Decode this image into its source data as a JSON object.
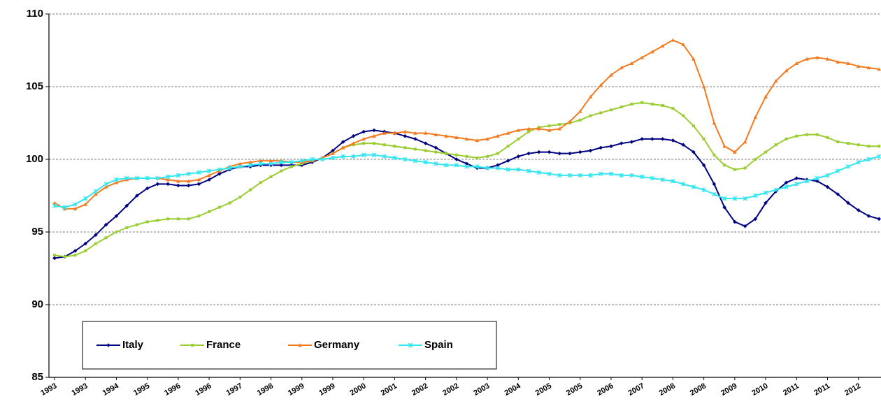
{
  "chart_data": {
    "type": "line",
    "categories": [
      "1993",
      null,
      null,
      "1993",
      null,
      null,
      "1994",
      null,
      null,
      "1995",
      null,
      null,
      "1996",
      null,
      null,
      "1996",
      null,
      null,
      "1997",
      null,
      null,
      "1998",
      null,
      null,
      "1999",
      null,
      null,
      "1999",
      null,
      null,
      "2000",
      null,
      null,
      "2001",
      null,
      null,
      "2002",
      null,
      null,
      "2002",
      null,
      null,
      "2003",
      null,
      null,
      "2004",
      null,
      null,
      "2005",
      null,
      null,
      "2005",
      null,
      null,
      "2006",
      null,
      null,
      "2007",
      null,
      null,
      "2008",
      null,
      null,
      "2008",
      null,
      null,
      "2009",
      null,
      null,
      "2010",
      null,
      null,
      "2011",
      null,
      null,
      "2011",
      null,
      null,
      "2012",
      null,
      null
    ],
    "series": [
      {
        "name": "Italy",
        "color": "#000080",
        "marker": "diamond",
        "values": [
          93.2,
          93.3,
          93.7,
          94.2,
          94.8,
          95.5,
          96.1,
          96.8,
          97.5,
          98.0,
          98.3,
          98.3,
          98.2,
          98.2,
          98.3,
          98.6,
          99.0,
          99.3,
          99.5,
          99.5,
          99.6,
          99.6,
          99.6,
          99.6,
          99.6,
          99.8,
          100.1,
          100.6,
          101.2,
          101.6,
          101.9,
          102.0,
          101.9,
          101.8,
          101.6,
          101.4,
          101.1,
          100.8,
          100.4,
          100.0,
          99.7,
          99.4,
          99.4,
          99.6,
          99.9,
          100.2,
          100.4,
          100.5,
          100.5,
          100.4,
          100.4,
          100.5,
          100.6,
          100.8,
          100.9,
          101.1,
          101.2,
          101.4,
          101.4,
          101.4,
          101.3,
          101.0,
          100.5,
          99.6,
          98.3,
          96.7,
          95.7,
          95.4,
          95.9,
          97.0,
          97.8,
          98.4,
          98.7,
          98.6,
          98.5,
          98.1,
          97.6,
          97.0,
          96.5,
          96.1,
          95.9
        ]
      },
      {
        "name": "France",
        "color": "#9acd32",
        "marker": "square",
        "values": [
          93.4,
          93.3,
          93.4,
          93.7,
          94.2,
          94.6,
          95.0,
          95.3,
          95.5,
          95.7,
          95.8,
          95.9,
          95.9,
          95.9,
          96.1,
          96.4,
          96.7,
          97.0,
          97.4,
          97.9,
          98.4,
          98.8,
          99.2,
          99.5,
          99.7,
          99.9,
          100.1,
          100.4,
          100.8,
          101.0,
          101.1,
          101.1,
          101.0,
          100.9,
          100.8,
          100.7,
          100.6,
          100.5,
          100.4,
          100.3,
          100.2,
          100.1,
          100.2,
          100.4,
          100.9,
          101.4,
          101.9,
          102.2,
          102.3,
          102.4,
          102.5,
          102.7,
          103.0,
          103.2,
          103.4,
          103.6,
          103.8,
          103.9,
          103.8,
          103.7,
          103.5,
          103.0,
          102.3,
          101.4,
          100.3,
          99.6,
          99.3,
          99.4,
          100.0,
          100.5,
          101.0,
          101.4,
          101.6,
          101.7,
          101.7,
          101.5,
          101.2,
          101.1,
          101.0,
          100.9,
          100.9
        ]
      },
      {
        "name": "Germany",
        "color": "#f47a20",
        "marker": "triangle",
        "values": [
          97.0,
          96.6,
          96.6,
          96.9,
          97.6,
          98.1,
          98.4,
          98.6,
          98.7,
          98.7,
          98.7,
          98.6,
          98.5,
          98.5,
          98.6,
          98.9,
          99.2,
          99.5,
          99.7,
          99.8,
          99.9,
          99.9,
          99.9,
          99.8,
          99.8,
          99.9,
          100.1,
          100.4,
          100.8,
          101.1,
          101.4,
          101.6,
          101.8,
          101.8,
          101.9,
          101.8,
          101.8,
          101.7,
          101.6,
          101.5,
          101.4,
          101.3,
          101.4,
          101.6,
          101.8,
          102.0,
          102.1,
          102.1,
          102.0,
          102.1,
          102.6,
          103.3,
          104.3,
          105.1,
          105.8,
          106.3,
          106.6,
          107.0,
          107.4,
          107.8,
          108.2,
          107.9,
          106.9,
          105.0,
          102.5,
          100.9,
          100.5,
          101.2,
          102.9,
          104.3,
          105.4,
          106.1,
          106.6,
          106.9,
          107.0,
          106.9,
          106.7,
          106.6,
          106.4,
          106.3,
          106.2
        ]
      },
      {
        "name": "Spain",
        "color": "#33e6f0",
        "marker": "cross",
        "values": [
          96.8,
          96.7,
          96.9,
          97.3,
          97.8,
          98.3,
          98.6,
          98.7,
          98.7,
          98.7,
          98.7,
          98.8,
          98.9,
          99.0,
          99.1,
          99.2,
          99.3,
          99.4,
          99.5,
          99.6,
          99.7,
          99.7,
          99.8,
          99.8,
          99.9,
          100.0,
          100.0,
          100.1,
          100.2,
          100.2,
          100.3,
          100.3,
          100.2,
          100.1,
          100.0,
          99.9,
          99.8,
          99.7,
          99.6,
          99.6,
          99.5,
          99.5,
          99.4,
          99.4,
          99.3,
          99.3,
          99.2,
          99.1,
          99.0,
          98.9,
          98.9,
          98.9,
          98.9,
          99.0,
          99.0,
          98.9,
          98.9,
          98.8,
          98.7,
          98.6,
          98.5,
          98.3,
          98.1,
          97.9,
          97.6,
          97.3,
          97.3,
          97.3,
          97.5,
          97.7,
          97.9,
          98.1,
          98.3,
          98.5,
          98.7,
          98.9,
          99.2,
          99.5,
          99.8,
          100.0,
          100.2
        ]
      }
    ],
    "ylim": [
      85,
      110
    ],
    "yticks": [
      85,
      90,
      95,
      100,
      105,
      110
    ],
    "grid": true,
    "legend": "lower left"
  }
}
